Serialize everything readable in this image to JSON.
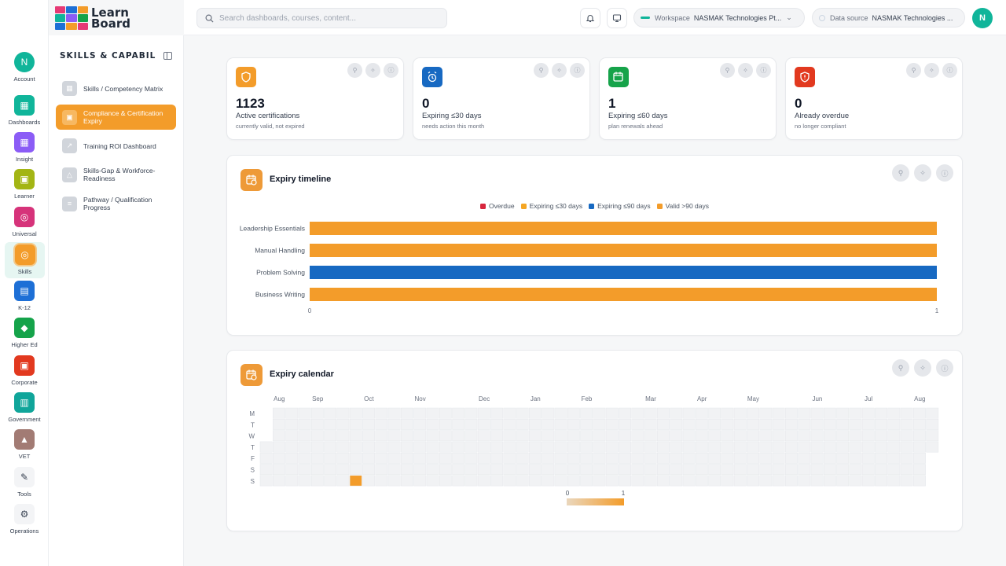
{
  "app": {
    "logo_line1": "Learn",
    "logo_line2": "Board"
  },
  "rail": [
    {
      "key": "account",
      "label": "Account",
      "color": "#10b59a",
      "glyph": "N",
      "round": true
    },
    {
      "key": "dashboards",
      "label": "Dashboards",
      "color": "#10b59a",
      "glyph": "▦"
    },
    {
      "key": "insight",
      "label": "Insight",
      "color": "#8b5cf6",
      "glyph": "▦"
    },
    {
      "key": "learner",
      "label": "Learner",
      "color": "#a3b514",
      "glyph": "▣"
    },
    {
      "key": "universal",
      "label": "Universal",
      "color": "#d6337a",
      "glyph": "◎"
    },
    {
      "key": "skills",
      "label": "Skills",
      "color": "#f39c2a",
      "glyph": "◎",
      "active": true
    },
    {
      "key": "k12",
      "label": "K-12",
      "color": "#1d6fd6",
      "glyph": "▤"
    },
    {
      "key": "higher-ed",
      "label": "Higher Ed",
      "color": "#15a34a",
      "glyph": "◆"
    },
    {
      "key": "corporate",
      "label": "Corporate",
      "color": "#e2391f",
      "glyph": "▣"
    },
    {
      "key": "government",
      "label": "Government",
      "color": "#10a59a",
      "glyph": "▥"
    },
    {
      "key": "vet",
      "label": "VET",
      "color": "#a27b74",
      "glyph": "▲"
    },
    {
      "key": "tools",
      "label": "Tools",
      "color": "#ffffff",
      "glyph": "✎",
      "plain": true
    },
    {
      "key": "operations",
      "label": "Operations",
      "color": "#ffffff",
      "glyph": "⚙",
      "plain": true
    }
  ],
  "subnav": {
    "title": "SKILLS & CAPABILITIES",
    "items": [
      {
        "label": "Skills / Competency Matrix",
        "active": false
      },
      {
        "label": "Compliance & Certification Expiry",
        "active": true
      },
      {
        "label": "Training ROI Dashboard",
        "active": false
      },
      {
        "label": "Skills-Gap & Workforce-Readiness",
        "active": false
      },
      {
        "label": "Pathway / Qualification Progress",
        "active": false
      }
    ]
  },
  "topbar": {
    "search_placeholder": "Search dashboards, courses, content...",
    "workspace_label": "Workspace",
    "workspace_value": "NASMAK Technologies Pt...",
    "datasource_label": "Data source",
    "datasource_value": "NASMAK Technologies ...",
    "avatar_initial": "N"
  },
  "kpis": [
    {
      "value": "1123",
      "label": "Active certifications",
      "sub": "currently valid, not expired",
      "color": "#f39c2a",
      "icon": "shield-icon"
    },
    {
      "value": "0",
      "label": "Expiring ≤30 days",
      "sub": "needs action this month",
      "color": "#1769c2",
      "icon": "alarm-icon"
    },
    {
      "value": "1",
      "label": "Expiring ≤60 days",
      "sub": "plan renewals ahead",
      "color": "#16a34a",
      "icon": "calendar-clock-icon"
    },
    {
      "value": "0",
      "label": "Already overdue",
      "sub": "no longer compliant",
      "color": "#e2391f",
      "icon": "shield-alert-icon"
    }
  ],
  "timeline": {
    "title": "Expiry timeline",
    "legend": [
      {
        "name": "Overdue",
        "color": "#d7263d"
      },
      {
        "name": "Expiring ≤30 days",
        "color": "#f5a623"
      },
      {
        "name": "Expiring ≤90 days",
        "color": "#1769c2"
      },
      {
        "name": "Valid >90 days",
        "color": "#f39c2a"
      }
    ]
  },
  "calendar": {
    "title": "Expiry calendar",
    "scale_min": "0",
    "scale_max": "1"
  },
  "chart_data": [
    {
      "type": "bar",
      "orientation": "horizontal",
      "title": "Expiry timeline",
      "categories": [
        "Leadership Essentials",
        "Manual Handling",
        "Problem Solving",
        "Business Writing"
      ],
      "values": [
        1,
        1,
        1,
        1
      ],
      "bar_colors": [
        "#f39c2a",
        "#f39c2a",
        "#1769c2",
        "#f39c2a"
      ],
      "xlim": [
        0,
        1
      ],
      "xticks": [
        "0",
        "1"
      ],
      "legend_position": "top-center"
    },
    {
      "type": "heatmap",
      "title": "Expiry calendar",
      "x_labels": [
        "Aug",
        "Sep",
        "Oct",
        "Nov",
        "Dec",
        "Jan",
        "Feb",
        "Mar",
        "Apr",
        "May",
        "Jun",
        "Jul",
        "Aug"
      ],
      "y_labels": [
        "M",
        "T",
        "W",
        "T",
        "F",
        "S",
        "S"
      ],
      "weeks": 53,
      "highlighted": [
        {
          "week": 7,
          "day": 6,
          "value": 1
        }
      ],
      "color_range": [
        0,
        1
      ],
      "colors": [
        "#f1f2f4",
        "#f39c2a"
      ]
    }
  ]
}
